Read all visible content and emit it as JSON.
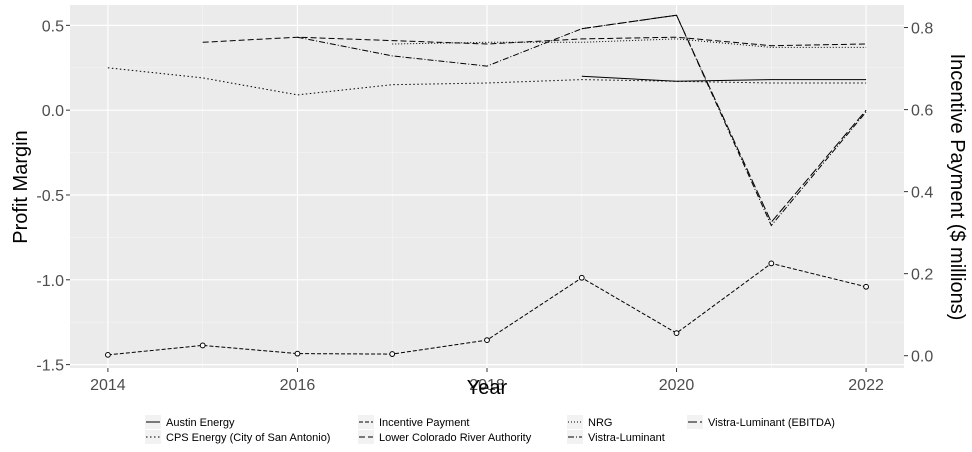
{
  "chart_data": {
    "type": "line",
    "xlabel": "Year",
    "ylabel_left": "Profit Margin",
    "ylabel_right": "Incentive Payment ($ millions)",
    "xlim": [
      2013.6,
      2022.4
    ],
    "ylim_left": [
      -1.52,
      0.62
    ],
    "ylim_right": [
      -0.03,
      0.855
    ],
    "x_ticks": [
      2014,
      2016,
      2018,
      2020,
      2022
    ],
    "y_left_ticks": [
      -1.5,
      -1.0,
      -0.5,
      0.0,
      0.5
    ],
    "y_left_tick_labels": [
      "-1.5",
      "-1.0",
      "-0.5",
      "0.0",
      "0.5"
    ],
    "y_right_ticks": [
      0.0,
      0.2,
      0.4,
      0.6,
      0.8
    ],
    "y_right_tick_labels": [
      "0.0",
      "0.2",
      "0.4",
      "0.6",
      "0.8"
    ],
    "grid": true,
    "legend_position": "bottom",
    "series": [
      {
        "name": "Austin Energy",
        "axis": "left",
        "dash": "",
        "x": [
          2019,
          2020,
          2021,
          2022
        ],
        "y": [
          0.2,
          0.17,
          0.18,
          0.18
        ]
      },
      {
        "name": "CPS Energy (City of San Antonio)",
        "axis": "left",
        "dash": "1.5,2.5",
        "x": [
          2014,
          2015,
          2016,
          2017,
          2018,
          2019,
          2020,
          2021,
          2022
        ],
        "y": [
          0.25,
          0.19,
          0.09,
          0.15,
          0.16,
          0.18,
          0.17,
          0.16,
          0.16
        ]
      },
      {
        "name": "Incentive Payment",
        "axis": "right",
        "dash": "4,2",
        "markers": true,
        "x": [
          2014,
          2015,
          2016,
          2017,
          2018,
          2019,
          2020,
          2021,
          2022
        ],
        "y": [
          0.002,
          0.025,
          0.005,
          0.004,
          0.038,
          0.19,
          0.055,
          0.225,
          0.168
        ]
      },
      {
        "name": "Lower Colorado River Authority",
        "axis": "left",
        "dash": "6,3",
        "x": [
          2015,
          2016,
          2017,
          2018,
          2019,
          2020,
          2021,
          2022
        ],
        "y": [
          0.4,
          0.43,
          0.41,
          0.39,
          0.42,
          0.43,
          0.38,
          0.39
        ]
      },
      {
        "name": "NRG",
        "axis": "left",
        "dash": "1,2",
        "x": [
          2017,
          2018,
          2019,
          2020,
          2021,
          2022
        ],
        "y": [
          0.39,
          0.4,
          0.4,
          0.42,
          0.37,
          0.37
        ]
      },
      {
        "name": "Vistra-Luminant",
        "axis": "left",
        "dash": "6,2,1,2",
        "x": [
          2016,
          2017,
          2018,
          2019,
          2020,
          2021,
          2022
        ],
        "y": [
          0.43,
          0.32,
          0.26,
          0.48,
          0.56,
          -0.68,
          -0.01
        ]
      },
      {
        "name": "Vistra-Luminant (EBITDA)",
        "axis": "left",
        "dash": "9,3",
        "x": [
          2019,
          2020,
          2021,
          2022
        ],
        "y": [
          0.48,
          0.56,
          -0.66,
          0.0
        ]
      }
    ]
  }
}
